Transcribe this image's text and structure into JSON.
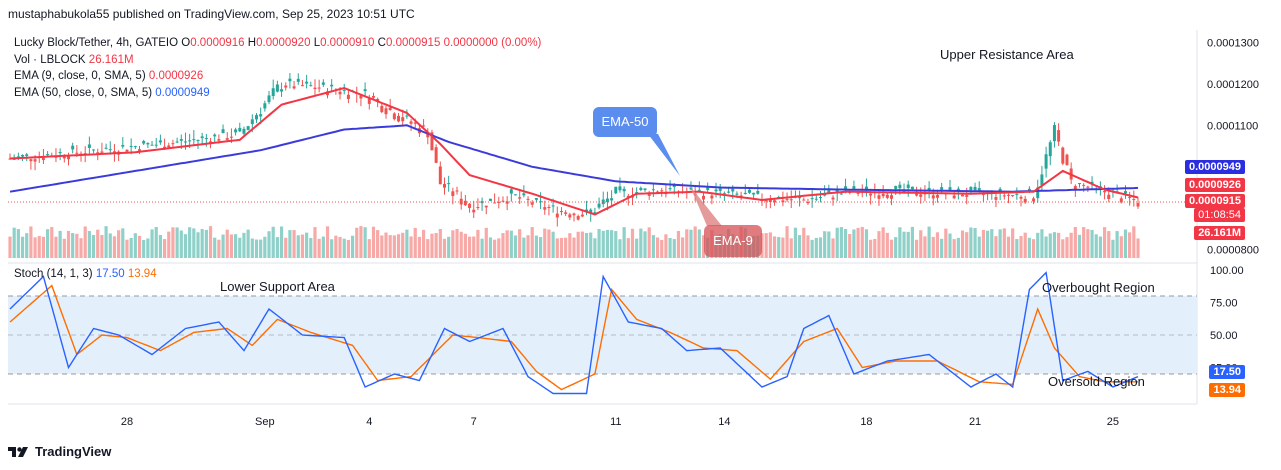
{
  "publisher": "mustaphabukola55 published on TradingView.com, Sep 25, 2023 10:51 UTC",
  "legend": {
    "symbol": "Lucky Block/Tether, 4h, GATEIO",
    "o_label": "O",
    "o": "0.0000916",
    "h_label": "H",
    "h": "0.0000920",
    "l_label": "L",
    "l": "0.0000910",
    "c_label": "C",
    "c": "0.0000915",
    "change": "0.0000000 (0.00%)",
    "vol_label": "Vol · LBLOCK",
    "vol": "26.161M",
    "ema9_label": "EMA (9, close, 0, SMA, 5)",
    "ema9": "0.0000926",
    "ema50_label": "EMA (50, close, 0, SMA, 5)",
    "ema50": "0.0000949"
  },
  "stoch_legend": {
    "label": "Stoch (14, 1, 3)",
    "k": "17.50",
    "d": "13.94"
  },
  "annotations": {
    "upper_resistance": "Upper Resistance Area",
    "lower_support": "Lower Support Area",
    "overbought": "Overbought Region",
    "oversold": "Oversold Region",
    "ema50_callout": "EMA-50",
    "ema9_callout": "EMA-9"
  },
  "price_badges": {
    "ema50": "0.0000949",
    "ema9": "0.0000926",
    "price": "0.0000915",
    "countdown": "01:08:54",
    "volume": "26.161M"
  },
  "stoch_badges": {
    "k": "17.50",
    "d": "13.94"
  },
  "footer": "TradingView",
  "colors": {
    "up": "#26a69a",
    "down": "#ef5350",
    "ema9": "#f23645",
    "ema50": "#3b3bdb",
    "stoch_k": "#2962ff",
    "stoch_d": "#ff6d00",
    "vol_up": "#8fd1c9",
    "vol_down": "#f7a9a7",
    "stoch_band": "#e3f0fb"
  },
  "chart_data": {
    "type": "candlestick",
    "price_axis": {
      "ticks": [
        "0.0001300",
        "0.0001200",
        "0.0001100",
        "0.0000800"
      ],
      "range": [
        7.8e-05,
        0.000133
      ]
    },
    "stoch_axis": {
      "ticks": [
        "100.00",
        "75.00",
        "50.00",
        "25.00"
      ],
      "range": [
        0,
        100
      ],
      "overbought": 80,
      "oversold": 20
    },
    "x_ticks": [
      "28",
      "Sep",
      "4",
      "7",
      "11",
      "14",
      "18",
      "21",
      "25"
    ],
    "price_anchors": [
      [
        0,
        0.000102
      ],
      [
        20,
        0.000104
      ],
      [
        40,
        0.000106
      ],
      [
        55,
        0.000108
      ],
      [
        65,
        0.00012
      ],
      [
        75,
        0.000119
      ],
      [
        85,
        0.0001175
      ],
      [
        95,
        0.000111
      ],
      [
        100,
        0.0001085
      ],
      [
        103,
        9.6e-05
      ],
      [
        110,
        9.05e-05
      ],
      [
        120,
        9.3e-05
      ],
      [
        130,
        8.95e-05
      ],
      [
        138,
        8.85e-05
      ],
      [
        145,
        9.35e-05
      ],
      [
        155,
        9.45e-05
      ],
      [
        170,
        9.35e-05
      ],
      [
        180,
        9.25e-05
      ],
      [
        190,
        9.2e-05
      ],
      [
        200,
        9.4e-05
      ],
      [
        215,
        9.4e-05
      ],
      [
        230,
        9.35e-05
      ],
      [
        245,
        9.3e-05
      ],
      [
        250,
        0.0001085
      ],
      [
        254,
        9.6e-05
      ],
      [
        262,
        9.4e-05
      ],
      [
        270,
        9.15e-05
      ]
    ],
    "ema9_anchors": [
      [
        0,
        0.000102
      ],
      [
        30,
        0.0001035
      ],
      [
        55,
        0.0001065
      ],
      [
        65,
        0.000115
      ],
      [
        80,
        0.000119
      ],
      [
        95,
        0.000113
      ],
      [
        103,
        0.0001055
      ],
      [
        110,
        9.8e-05
      ],
      [
        125,
        9.35e-05
      ],
      [
        140,
        8.85e-05
      ],
      [
        150,
        9.35e-05
      ],
      [
        165,
        9.4e-05
      ],
      [
        180,
        9.2e-05
      ],
      [
        200,
        9.4e-05
      ],
      [
        230,
        9.35e-05
      ],
      [
        245,
        9.4e-05
      ],
      [
        252,
        9.9e-05
      ],
      [
        262,
        9.45e-05
      ],
      [
        270,
        9.26e-05
      ]
    ],
    "ema50_anchors": [
      [
        0,
        9.4e-05
      ],
      [
        30,
        9.9e-05
      ],
      [
        60,
        0.000104
      ],
      [
        80,
        0.000109
      ],
      [
        95,
        0.00011
      ],
      [
        105,
        0.000106
      ],
      [
        125,
        0.0001
      ],
      [
        145,
        9.65e-05
      ],
      [
        170,
        9.5e-05
      ],
      [
        200,
        9.45e-05
      ],
      [
        240,
        9.4e-05
      ],
      [
        270,
        9.49e-05
      ]
    ],
    "stoch_k_anchors": [
      [
        0,
        70
      ],
      [
        8,
        95
      ],
      [
        14,
        25
      ],
      [
        20,
        55
      ],
      [
        26,
        50
      ],
      [
        34,
        35
      ],
      [
        42,
        55
      ],
      [
        50,
        60
      ],
      [
        56,
        38
      ],
      [
        62,
        70
      ],
      [
        70,
        50
      ],
      [
        80,
        48
      ],
      [
        85,
        10
      ],
      [
        92,
        20
      ],
      [
        98,
        15
      ],
      [
        104,
        55
      ],
      [
        110,
        45
      ],
      [
        118,
        55
      ],
      [
        124,
        18
      ],
      [
        130,
        5
      ],
      [
        138,
        5
      ],
      [
        142,
        95
      ],
      [
        148,
        60
      ],
      [
        156,
        55
      ],
      [
        162,
        38
      ],
      [
        170,
        40
      ],
      [
        180,
        10
      ],
      [
        186,
        18
      ],
      [
        190,
        55
      ],
      [
        196,
        65
      ],
      [
        202,
        20
      ],
      [
        210,
        30
      ],
      [
        220,
        35
      ],
      [
        230,
        10
      ],
      [
        236,
        20
      ],
      [
        240,
        10
      ],
      [
        244,
        85
      ],
      [
        248,
        98
      ],
      [
        252,
        15
      ],
      [
        258,
        22
      ],
      [
        264,
        10
      ],
      [
        270,
        18
      ]
    ],
    "stoch_d_anchors": [
      [
        0,
        60
      ],
      [
        10,
        88
      ],
      [
        16,
        35
      ],
      [
        22,
        50
      ],
      [
        28,
        48
      ],
      [
        36,
        38
      ],
      [
        44,
        52
      ],
      [
        52,
        55
      ],
      [
        58,
        42
      ],
      [
        64,
        62
      ],
      [
        72,
        52
      ],
      [
        82,
        42
      ],
      [
        88,
        15
      ],
      [
        96,
        18
      ],
      [
        106,
        50
      ],
      [
        112,
        48
      ],
      [
        120,
        45
      ],
      [
        126,
        22
      ],
      [
        132,
        8
      ],
      [
        140,
        20
      ],
      [
        144,
        85
      ],
      [
        150,
        62
      ],
      [
        158,
        52
      ],
      [
        166,
        40
      ],
      [
        174,
        38
      ],
      [
        182,
        16
      ],
      [
        190,
        45
      ],
      [
        198,
        55
      ],
      [
        204,
        25
      ],
      [
        212,
        30
      ],
      [
        222,
        30
      ],
      [
        232,
        14
      ],
      [
        240,
        12
      ],
      [
        246,
        70
      ],
      [
        250,
        40
      ],
      [
        256,
        18
      ],
      [
        262,
        14
      ],
      [
        270,
        14
      ]
    ]
  }
}
